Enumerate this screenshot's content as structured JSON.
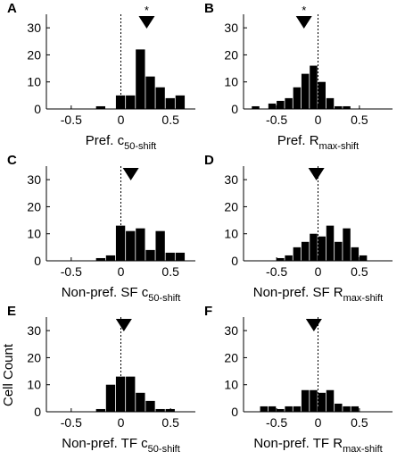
{
  "ylabel": "Cell Count",
  "chart_data": [
    {
      "type": "bar",
      "panel": "A",
      "xlabel": {
        "main": "Pref. c",
        "sub": "50-shift"
      },
      "xlim": [
        -0.75,
        0.75
      ],
      "ylim": [
        0,
        35
      ],
      "xticks": [
        -0.5,
        0,
        0.5
      ],
      "xtick_labels": [
        "-0.5",
        "0",
        "0.5"
      ],
      "yticks": [
        0,
        10,
        20,
        30
      ],
      "ytick_labels": [
        "0",
        "10",
        "20",
        "30"
      ],
      "bin_width": 0.1,
      "bins": [
        {
          "x": -0.2,
          "count": 1
        },
        {
          "x": 0.0,
          "count": 5
        },
        {
          "x": 0.1,
          "count": 5
        },
        {
          "x": 0.2,
          "count": 22
        },
        {
          "x": 0.3,
          "count": 12
        },
        {
          "x": 0.4,
          "count": 8
        },
        {
          "x": 0.5,
          "count": 4
        },
        {
          "x": 0.6,
          "count": 5
        }
      ],
      "mean_marker": 0.26,
      "significance": "*"
    },
    {
      "type": "bar",
      "panel": "B",
      "xlabel": {
        "main": "Pref. R",
        "sub": "max-shift"
      },
      "xlim": [
        -0.9,
        0.9
      ],
      "ylim": [
        0,
        35
      ],
      "xticks": [
        -0.5,
        0,
        0.5
      ],
      "xtick_labels": [
        "-0.5",
        "0",
        "0.5"
      ],
      "yticks": [
        0,
        10,
        20,
        30
      ],
      "ytick_labels": [
        "0",
        "10",
        "20",
        "30"
      ],
      "bin_width": 0.1,
      "bins": [
        {
          "x": -0.75,
          "count": 1
        },
        {
          "x": -0.55,
          "count": 2
        },
        {
          "x": -0.45,
          "count": 3
        },
        {
          "x": -0.35,
          "count": 4
        },
        {
          "x": -0.25,
          "count": 8
        },
        {
          "x": -0.15,
          "count": 13
        },
        {
          "x": -0.05,
          "count": 16
        },
        {
          "x": 0.05,
          "count": 10
        },
        {
          "x": 0.15,
          "count": 4
        },
        {
          "x": 0.25,
          "count": 1
        },
        {
          "x": 0.35,
          "count": 1
        }
      ],
      "mean_marker": -0.17,
      "significance": "*"
    },
    {
      "type": "bar",
      "panel": "C",
      "xlabel": {
        "main": "Non-pref. SF c",
        "sub": "50-shift"
      },
      "xlim": [
        -0.75,
        0.75
      ],
      "ylim": [
        0,
        35
      ],
      "xticks": [
        -0.5,
        0,
        0.5
      ],
      "xtick_labels": [
        "-0.5",
        "0",
        "0.5"
      ],
      "yticks": [
        0,
        10,
        20,
        30
      ],
      "ytick_labels": [
        "0",
        "10",
        "20",
        "30"
      ],
      "bin_width": 0.1,
      "bins": [
        {
          "x": -0.2,
          "count": 1
        },
        {
          "x": -0.1,
          "count": 2
        },
        {
          "x": 0.0,
          "count": 13
        },
        {
          "x": 0.1,
          "count": 11
        },
        {
          "x": 0.2,
          "count": 12
        },
        {
          "x": 0.3,
          "count": 4
        },
        {
          "x": 0.4,
          "count": 11
        },
        {
          "x": 0.5,
          "count": 3
        },
        {
          "x": 0.6,
          "count": 3
        }
      ],
      "mean_marker": 0.1,
      "significance": ""
    },
    {
      "type": "bar",
      "panel": "D",
      "xlabel": {
        "main": "Non-pref. SF R",
        "sub": "max-shift"
      },
      "xlim": [
        -0.9,
        0.9
      ],
      "ylim": [
        0,
        35
      ],
      "xticks": [
        -0.5,
        0,
        0.5
      ],
      "xtick_labels": [
        "-0.5",
        "0",
        "0.5"
      ],
      "yticks": [
        0,
        10,
        20,
        30
      ],
      "ytick_labels": [
        "0",
        "10",
        "20",
        "30"
      ],
      "bin_width": 0.1,
      "bins": [
        {
          "x": -0.45,
          "count": 1
        },
        {
          "x": -0.35,
          "count": 2
        },
        {
          "x": -0.25,
          "count": 5
        },
        {
          "x": -0.15,
          "count": 7
        },
        {
          "x": -0.05,
          "count": 10
        },
        {
          "x": 0.05,
          "count": 9
        },
        {
          "x": 0.15,
          "count": 13
        },
        {
          "x": 0.25,
          "count": 7
        },
        {
          "x": 0.35,
          "count": 12
        },
        {
          "x": 0.45,
          "count": 5
        },
        {
          "x": 0.55,
          "count": 2
        }
      ],
      "mean_marker": -0.02,
      "significance": ""
    },
    {
      "type": "bar",
      "panel": "E",
      "xlabel": {
        "main": "Non-pref. TF c",
        "sub": "50-shift"
      },
      "ylabel": "Cell Count",
      "xlim": [
        -0.75,
        0.75
      ],
      "ylim": [
        0,
        35
      ],
      "xticks": [
        -0.5,
        0,
        0.5
      ],
      "xtick_labels": [
        "-0.5",
        "0",
        "0.5"
      ],
      "yticks": [
        0,
        10,
        20,
        30
      ],
      "ytick_labels": [
        "0",
        "10",
        "20",
        "30"
      ],
      "bin_width": 0.1,
      "bins": [
        {
          "x": -0.2,
          "count": 1
        },
        {
          "x": -0.1,
          "count": 10
        },
        {
          "x": 0.0,
          "count": 13
        },
        {
          "x": 0.1,
          "count": 13
        },
        {
          "x": 0.2,
          "count": 7
        },
        {
          "x": 0.3,
          "count": 4
        },
        {
          "x": 0.4,
          "count": 1
        },
        {
          "x": 0.5,
          "count": 1
        }
      ],
      "mean_marker": 0.03,
      "significance": ""
    },
    {
      "type": "bar",
      "panel": "F",
      "xlabel": {
        "main": "Non-pref. TF R",
        "sub": "max-shift"
      },
      "xlim": [
        -0.9,
        0.9
      ],
      "ylim": [
        0,
        35
      ],
      "xticks": [
        -0.5,
        0,
        0.5
      ],
      "xtick_labels": [
        "-0.5",
        "0",
        "0.5"
      ],
      "yticks": [
        0,
        10,
        20,
        30
      ],
      "ytick_labels": [
        "0",
        "10",
        "20",
        "30"
      ],
      "bin_width": 0.1,
      "bins": [
        {
          "x": -0.65,
          "count": 2
        },
        {
          "x": -0.55,
          "count": 2
        },
        {
          "x": -0.45,
          "count": 1
        },
        {
          "x": -0.35,
          "count": 2
        },
        {
          "x": -0.25,
          "count": 2
        },
        {
          "x": -0.15,
          "count": 8
        },
        {
          "x": -0.05,
          "count": 8
        },
        {
          "x": 0.05,
          "count": 7
        },
        {
          "x": 0.15,
          "count": 8
        },
        {
          "x": 0.25,
          "count": 3
        },
        {
          "x": 0.35,
          "count": 2
        },
        {
          "x": 0.45,
          "count": 2
        }
      ],
      "mean_marker": -0.05,
      "significance": ""
    }
  ]
}
